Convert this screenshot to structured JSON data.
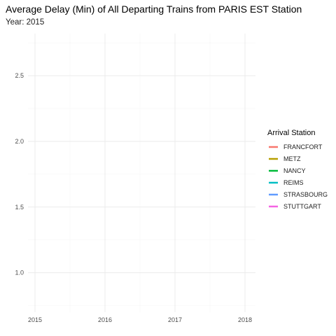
{
  "chart_data": {
    "type": "line",
    "title": "Average Delay (Min) of All Departing Trains from PARIS EST Station",
    "subtitle": "Year: 2015",
    "xlabel": "",
    "ylabel": "",
    "x_ticks": [
      2015,
      2016,
      2017,
      2018
    ],
    "y_ticks": [
      1.0,
      1.5,
      2.0,
      2.5
    ],
    "xlim": [
      2014.9,
      2018.15
    ],
    "ylim": [
      0.7,
      2.82
    ],
    "grid": true,
    "legend": {
      "title": "Arrival Station",
      "position": "right",
      "entries": [
        {
          "name": "FRANCFORT",
          "color": "#F8766D"
        },
        {
          "name": "METZ",
          "color": "#B79F00"
        },
        {
          "name": "NANCY",
          "color": "#00BA38"
        },
        {
          "name": "REIMS",
          "color": "#00BFC4"
        },
        {
          "name": "STRASBOURG",
          "color": "#619CFF"
        },
        {
          "name": "STUTTGART",
          "color": "#F564E3"
        }
      ]
    },
    "series": []
  }
}
